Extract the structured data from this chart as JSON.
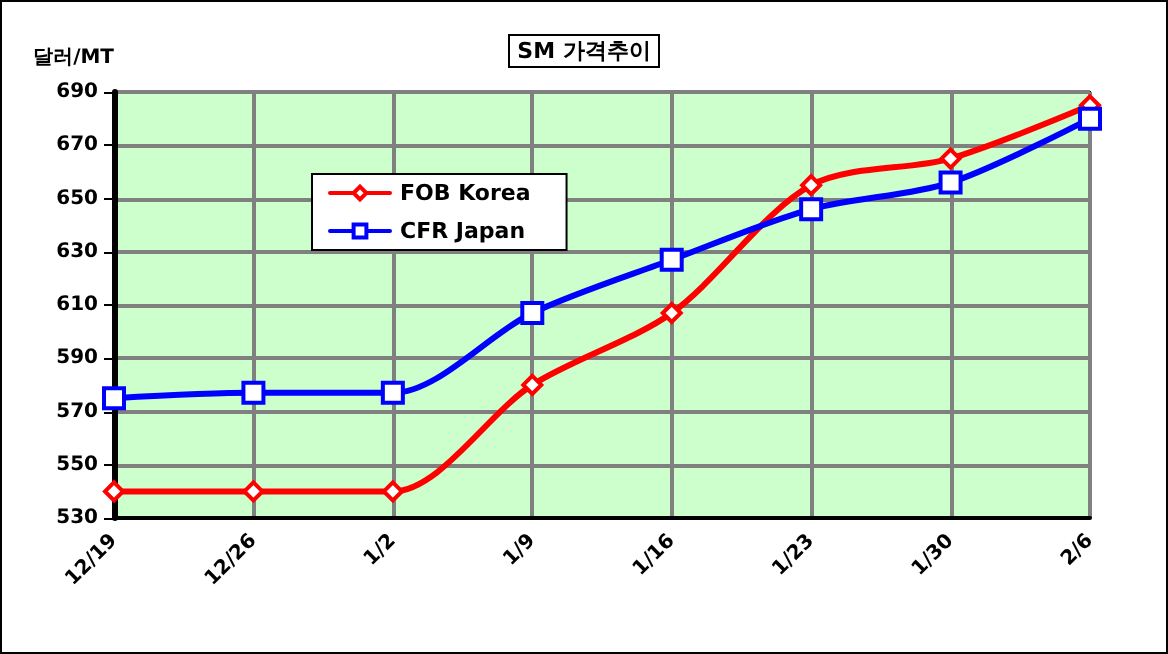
{
  "chart_data": {
    "type": "line",
    "title": "SM 가격추이",
    "ylabel": "달러/MT",
    "categories": [
      "12/19",
      "12/26",
      "1/2",
      "1/9",
      "1/16",
      "1/23",
      "1/30",
      "2/6"
    ],
    "series": [
      {
        "name": "FOB Korea",
        "color": "#ff0000",
        "marker": "diamond",
        "values": [
          540,
          540,
          540,
          580,
          607,
          655,
          665,
          685
        ]
      },
      {
        "name": "CFR Japan",
        "color": "#0000ff",
        "marker": "square",
        "values": [
          575,
          577,
          577,
          607,
          627,
          646,
          656,
          680
        ]
      }
    ],
    "ylim": [
      530,
      690
    ],
    "yticks": [
      530,
      550,
      570,
      590,
      610,
      630,
      650,
      670,
      690
    ],
    "grid": true,
    "legend": "top left",
    "line_style": "solid"
  }
}
